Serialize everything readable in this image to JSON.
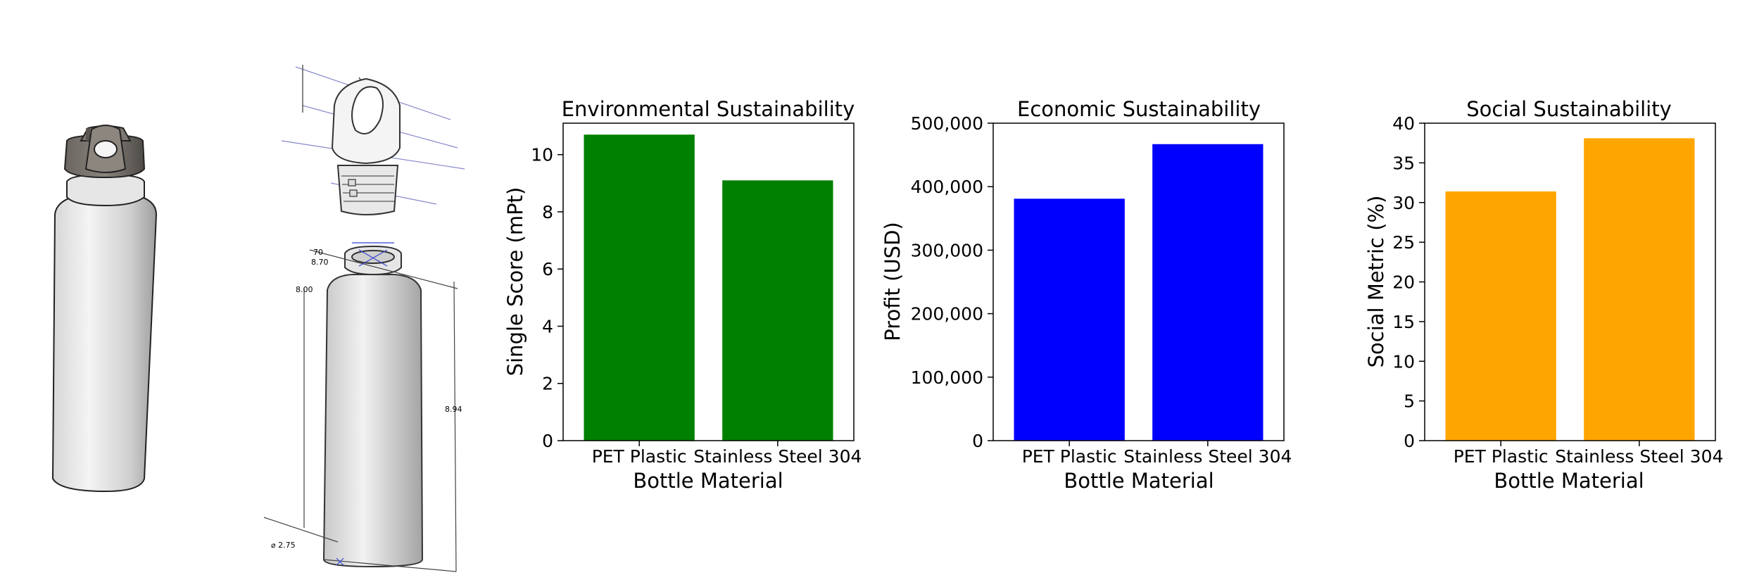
{
  "chart_data": [
    {
      "type": "bar",
      "title": "Environmental Sustainability",
      "xlabel": "Bottle Material",
      "ylabel": "Single Score (mPt)",
      "categories": [
        "PET Plastic",
        "Stainless Steel 304"
      ],
      "values": [
        10.7,
        9.1
      ],
      "ylim": [
        0,
        11.1
      ],
      "yticks": [
        0,
        2,
        4,
        6,
        8,
        10
      ],
      "ytick_labels": [
        "0",
        "2",
        "4",
        "6",
        "8",
        "10"
      ],
      "color": "#008000",
      "grid": false
    },
    {
      "type": "bar",
      "title": "Economic Sustainability",
      "xlabel": "Bottle Material",
      "ylabel": "Profit (USD)",
      "categories": [
        "PET Plastic",
        "Stainless Steel 304"
      ],
      "values": [
        381000,
        467000
      ],
      "ylim": [
        0,
        500000
      ],
      "yticks": [
        0,
        100000,
        200000,
        300000,
        400000,
        500000
      ],
      "ytick_labels": [
        "0",
        "100,000",
        "200,000",
        "300,000",
        "400,000",
        "500,000"
      ],
      "color": "#0000ff",
      "grid": false
    },
    {
      "type": "bar",
      "title": "Social Sustainability",
      "xlabel": "Bottle Material",
      "ylabel": "Social Metric (%)",
      "categories": [
        "PET Plastic",
        "Stainless Steel 304"
      ],
      "values": [
        31.4,
        38.1
      ],
      "ylim": [
        0,
        40
      ],
      "yticks": [
        0,
        5,
        10,
        15,
        20,
        25,
        30,
        35,
        40
      ],
      "ytick_labels": [
        "0",
        "5",
        "10",
        "15",
        "20",
        "25",
        "30",
        "35",
        "40"
      ],
      "color": "#ffa500",
      "grid": false
    }
  ],
  "drawing": {
    "dimensions": [
      "70",
      "8.70",
      "8.00",
      "8.94",
      "⌀ 2.75"
    ]
  }
}
